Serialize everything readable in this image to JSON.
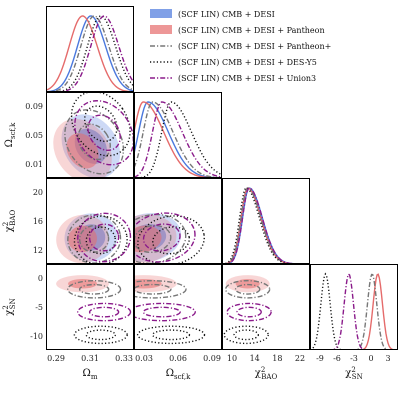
{
  "chart_data": {
    "type": "corner",
    "params": [
      {
        "key": "om",
        "label": "Ωm",
        "ticks": [
          "0.29",
          "0.31",
          "0.33"
        ],
        "range": [
          0.283,
          0.336
        ]
      },
      {
        "key": "osk",
        "label": "Ωscf,k",
        "ticks": [
          "0.01",
          "0.03",
          "0.06",
          "0.09"
        ],
        "range": [
          0.0,
          0.095
        ]
      },
      {
        "key": "cb",
        "label": "χ²BAO",
        "ticks": [
          "12",
          "16",
          "20"
        ],
        "x_ticks": [
          "10",
          "14",
          "18",
          "22"
        ],
        "range": [
          10.5,
          22.5
        ]
      },
      {
        "key": "csn",
        "label": "χ²SN",
        "ticks": [
          "0",
          "-5",
          "-10"
        ],
        "x_ticks": [
          "-9",
          "-6",
          "-3",
          "0",
          "3"
        ],
        "range": [
          -12.5,
          4.5
        ]
      }
    ],
    "y_tick_labels": {
      "osk": [
        "0.09",
        "0.05",
        "0.01"
      ],
      "cb": [
        "20",
        "16",
        "12"
      ],
      "csn": [
        "0",
        "-5",
        "-10"
      ]
    },
    "x_tick_labels": {
      "om": [
        "0.29",
        "0.31",
        "0.33"
      ],
      "osk": [
        "0.03",
        "0.06",
        "0.09"
      ],
      "cb": [
        "10",
        "14",
        "18",
        "22"
      ],
      "csn": [
        "-9",
        "-6",
        "-3",
        "0",
        "3"
      ]
    },
    "legend_placement": "top-right",
    "series": [
      {
        "name": "(SCF LIN) CMB + DESI",
        "color": "#4a78dd",
        "style": "filled",
        "peaks": {
          "om": 0.31,
          "osk": 0.015,
          "cb": 14.2
        }
      },
      {
        "name": "(SCF LIN) CMB + DESI + Pantheon",
        "color": "#e56b6b",
        "style": "filled",
        "peaks": {
          "om": 0.305,
          "osk": 0.01,
          "cb": 14.0,
          "csn": 0.6
        }
      },
      {
        "name": "(SCF LIN) CMB + DESI + Pantheon+",
        "color": "#777777",
        "style": "dashdot",
        "peaks": {
          "om": 0.312,
          "osk": 0.02,
          "cb": 14.0,
          "csn": -0.5
        }
      },
      {
        "name": "(SCF LIN) CMB + DESI + DES-Y5",
        "color": "#111111",
        "style": "dotted",
        "peaks": {
          "om": 0.316,
          "osk": 0.04,
          "cb": 13.8,
          "csn": -9.5
        }
      },
      {
        "name": "(SCF LIN) CMB + DESI + Union3",
        "color": "#8a1a8a",
        "style": "dashdot",
        "peaks": {
          "om": 0.318,
          "osk": 0.03,
          "cb": 14.2,
          "csn": -5.0
        }
      }
    ]
  }
}
